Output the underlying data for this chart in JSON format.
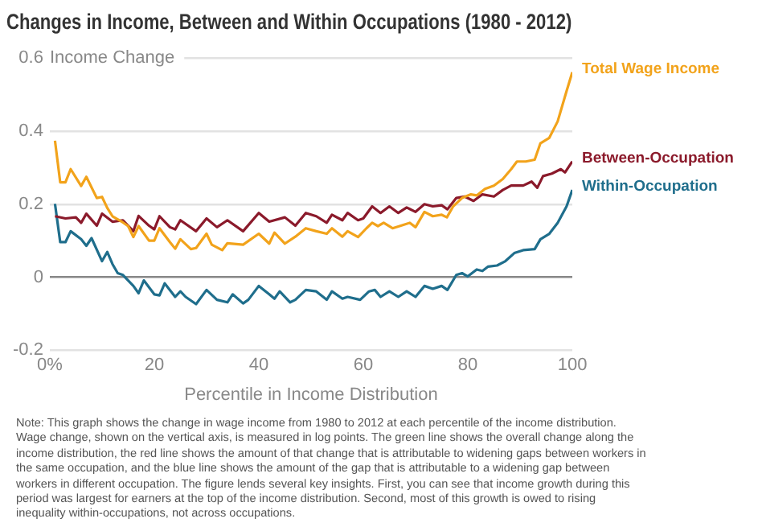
{
  "chart_data": {
    "type": "line",
    "title": "Changes in Income, Between and Within Occupations (1980 - 2012)",
    "xlabel": "Percentile in Income Distribution",
    "ylabel": "Income Change",
    "xlim": [
      0,
      100
    ],
    "xticks": [
      {
        "value": 0,
        "label": "0%"
      },
      20,
      40,
      60,
      80,
      100
    ],
    "ylim": [
      -0.2,
      0.6
    ],
    "yticks": [
      -0.2,
      0,
      0.2,
      0.4,
      0.6
    ],
    "grid": "y",
    "legend": false,
    "marker": "none",
    "line_style": "solid",
    "series": [
      {
        "name": "Total Wage Income",
        "color": "#f2a31b",
        "x": [
          1,
          2,
          3,
          4,
          6,
          7,
          9,
          10,
          11,
          12,
          14,
          15,
          16,
          17,
          19,
          20,
          21,
          23,
          24,
          25,
          27,
          28,
          30,
          31,
          33,
          34,
          37,
          40,
          42,
          43,
          45,
          47,
          49,
          51,
          53,
          54,
          56,
          57,
          59,
          60.6,
          61.7,
          62.8,
          63.9,
          65.6,
          67.2,
          68.9,
          70,
          71.7,
          73.3,
          75,
          76,
          77.2,
          78.9,
          80.6,
          81.7,
          83.3,
          85,
          86.7,
          88.3,
          89.4,
          91.1,
          92.8,
          93.9,
          95.6,
          97.2,
          98.9,
          100
        ],
        "values": [
          0.374,
          0.26,
          0.26,
          0.296,
          0.25,
          0.275,
          0.217,
          0.22,
          0.19,
          0.167,
          0.15,
          0.14,
          0.11,
          0.14,
          0.1,
          0.1,
          0.134,
          0.096,
          0.078,
          0.104,
          0.077,
          0.08,
          0.119,
          0.089,
          0.074,
          0.093,
          0.089,
          0.119,
          0.092,
          0.122,
          0.092,
          0.111,
          0.134,
          0.126,
          0.119,
          0.134,
          0.111,
          0.126,
          0.11,
          0.134,
          0.149,
          0.14,
          0.149,
          0.134,
          0.141,
          0.149,
          0.137,
          0.179,
          0.167,
          0.171,
          0.164,
          0.194,
          0.217,
          0.227,
          0.224,
          0.242,
          0.251,
          0.269,
          0.296,
          0.317,
          0.317,
          0.322,
          0.367,
          0.382,
          0.427,
          0.51,
          0.562
        ]
      },
      {
        "name": "Between-Occupation",
        "color": "#8b1a2b",
        "x": [
          1,
          3,
          5,
          6,
          7,
          9,
          10,
          12,
          14,
          16,
          17,
          19,
          20,
          21,
          23,
          24,
          25,
          28,
          30,
          32,
          34,
          37,
          40,
          42,
          45,
          47,
          49,
          51,
          53,
          54,
          56,
          57,
          59,
          60,
          61.7,
          63.3,
          65,
          66.7,
          68.3,
          70,
          71.7,
          73.3,
          75,
          76.1,
          77.8,
          79.4,
          81.1,
          82.8,
          85,
          86.7,
          88.3,
          90.6,
          92.2,
          93.3,
          94.4,
          96.1,
          97.8,
          98.6,
          100
        ],
        "values": [
          0.167,
          0.161,
          0.164,
          0.149,
          0.174,
          0.141,
          0.174,
          0.152,
          0.156,
          0.126,
          0.168,
          0.141,
          0.131,
          0.167,
          0.137,
          0.131,
          0.156,
          0.126,
          0.161,
          0.137,
          0.156,
          0.126,
          0.176,
          0.152,
          0.164,
          0.141,
          0.176,
          0.167,
          0.149,
          0.171,
          0.156,
          0.176,
          0.156,
          0.161,
          0.194,
          0.176,
          0.194,
          0.176,
          0.191,
          0.179,
          0.2,
          0.194,
          0.197,
          0.186,
          0.217,
          0.221,
          0.209,
          0.227,
          0.221,
          0.239,
          0.251,
          0.251,
          0.262,
          0.245,
          0.277,
          0.284,
          0.296,
          0.287,
          0.317
        ]
      },
      {
        "name": "Within-Occupation",
        "color": "#1f6e8c",
        "x": [
          1,
          2,
          3,
          4,
          6,
          7,
          8,
          10,
          11,
          12,
          13,
          14,
          16,
          17,
          18,
          20,
          21,
          22,
          24,
          25,
          26,
          28,
          30,
          32,
          34,
          35,
          37,
          38,
          40,
          42,
          43,
          44,
          46,
          47,
          49,
          51,
          53,
          54,
          56,
          57,
          59.4,
          61.1,
          62.2,
          63.3,
          65,
          66.7,
          68.3,
          70,
          71.7,
          73.3,
          75,
          76.1,
          77.8,
          78.9,
          80,
          81.7,
          82.8,
          83.9,
          85.6,
          87.2,
          88.9,
          90.6,
          92.8,
          93.9,
          95.6,
          97.2,
          98.9,
          100
        ],
        "values": [
          0.201,
          0.096,
          0.096,
          0.126,
          0.104,
          0.086,
          0.107,
          0.044,
          0.069,
          0.036,
          0.011,
          0.006,
          -0.024,
          -0.044,
          -0.009,
          -0.047,
          -0.05,
          -0.017,
          -0.054,
          -0.039,
          -0.054,
          -0.074,
          -0.035,
          -0.062,
          -0.069,
          -0.047,
          -0.072,
          -0.062,
          -0.024,
          -0.047,
          -0.059,
          -0.039,
          -0.069,
          -0.062,
          -0.035,
          -0.039,
          -0.062,
          -0.039,
          -0.059,
          -0.054,
          -0.062,
          -0.039,
          -0.035,
          -0.054,
          -0.039,
          -0.054,
          -0.039,
          -0.054,
          -0.024,
          -0.032,
          -0.024,
          -0.035,
          0.006,
          0.011,
          0.002,
          0.021,
          0.017,
          0.029,
          0.032,
          0.044,
          0.066,
          0.074,
          0.077,
          0.104,
          0.119,
          0.149,
          0.194,
          0.239
        ]
      }
    ],
    "annotations": [
      "Note: This graph shows the change in wage income from 1980 to 2012 at each percentile of the income distribution. Wage change, shown on the vertical axis, is measured in log points. The green line shows the overall change along the income distribution, the red line shows the amount of that change that is attributable to widening gaps between workers in the same occupation, and the blue line shows the amount of the gap that is attributable to a widening gap between workers in different occupation. The figure lends several key insights. First, you can see that income growth during this period was largest for earners at the top of the income distribution. Second, most of this growth is owed to rising inequality within-occupations, not across occupations."
    ]
  }
}
